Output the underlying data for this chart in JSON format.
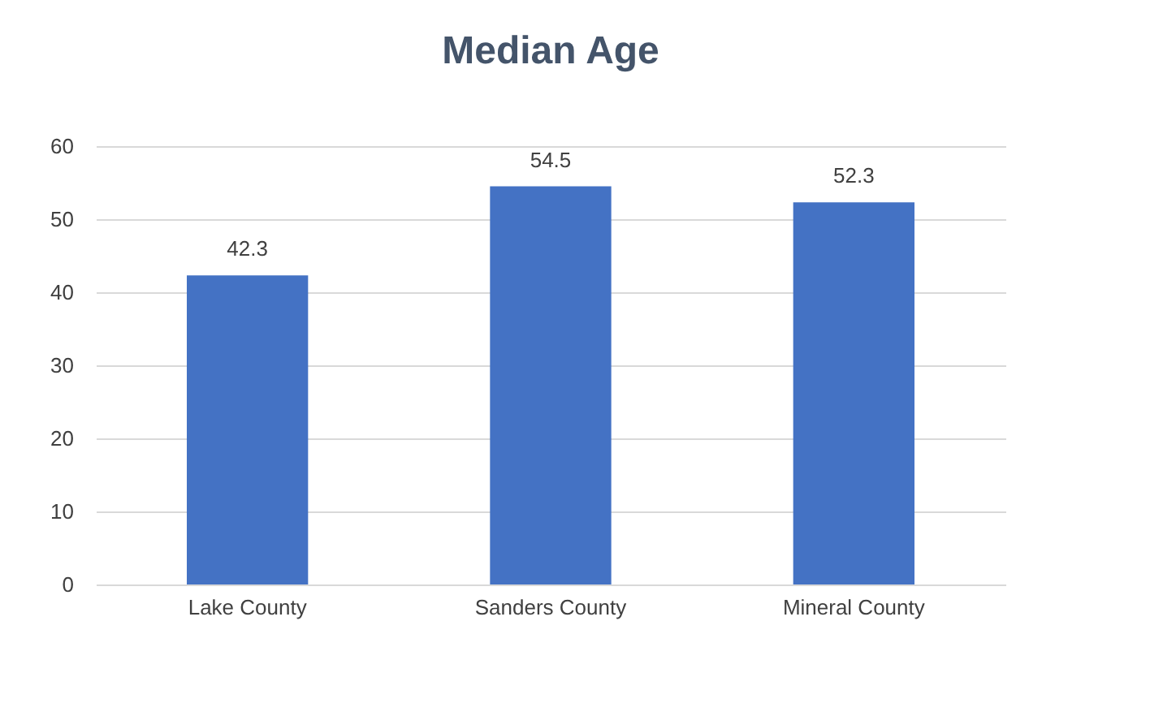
{
  "chart_data": {
    "type": "bar",
    "title": "Median Age",
    "categories": [
      "Lake County",
      "Sanders County",
      "Mineral County"
    ],
    "values": [
      42.3,
      54.5,
      52.3
    ],
    "color": "#4472c4",
    "ylim": [
      0,
      60
    ],
    "yticks": [
      0,
      10,
      20,
      30,
      40,
      50,
      60
    ],
    "grid": "y",
    "data_labels": true
  }
}
